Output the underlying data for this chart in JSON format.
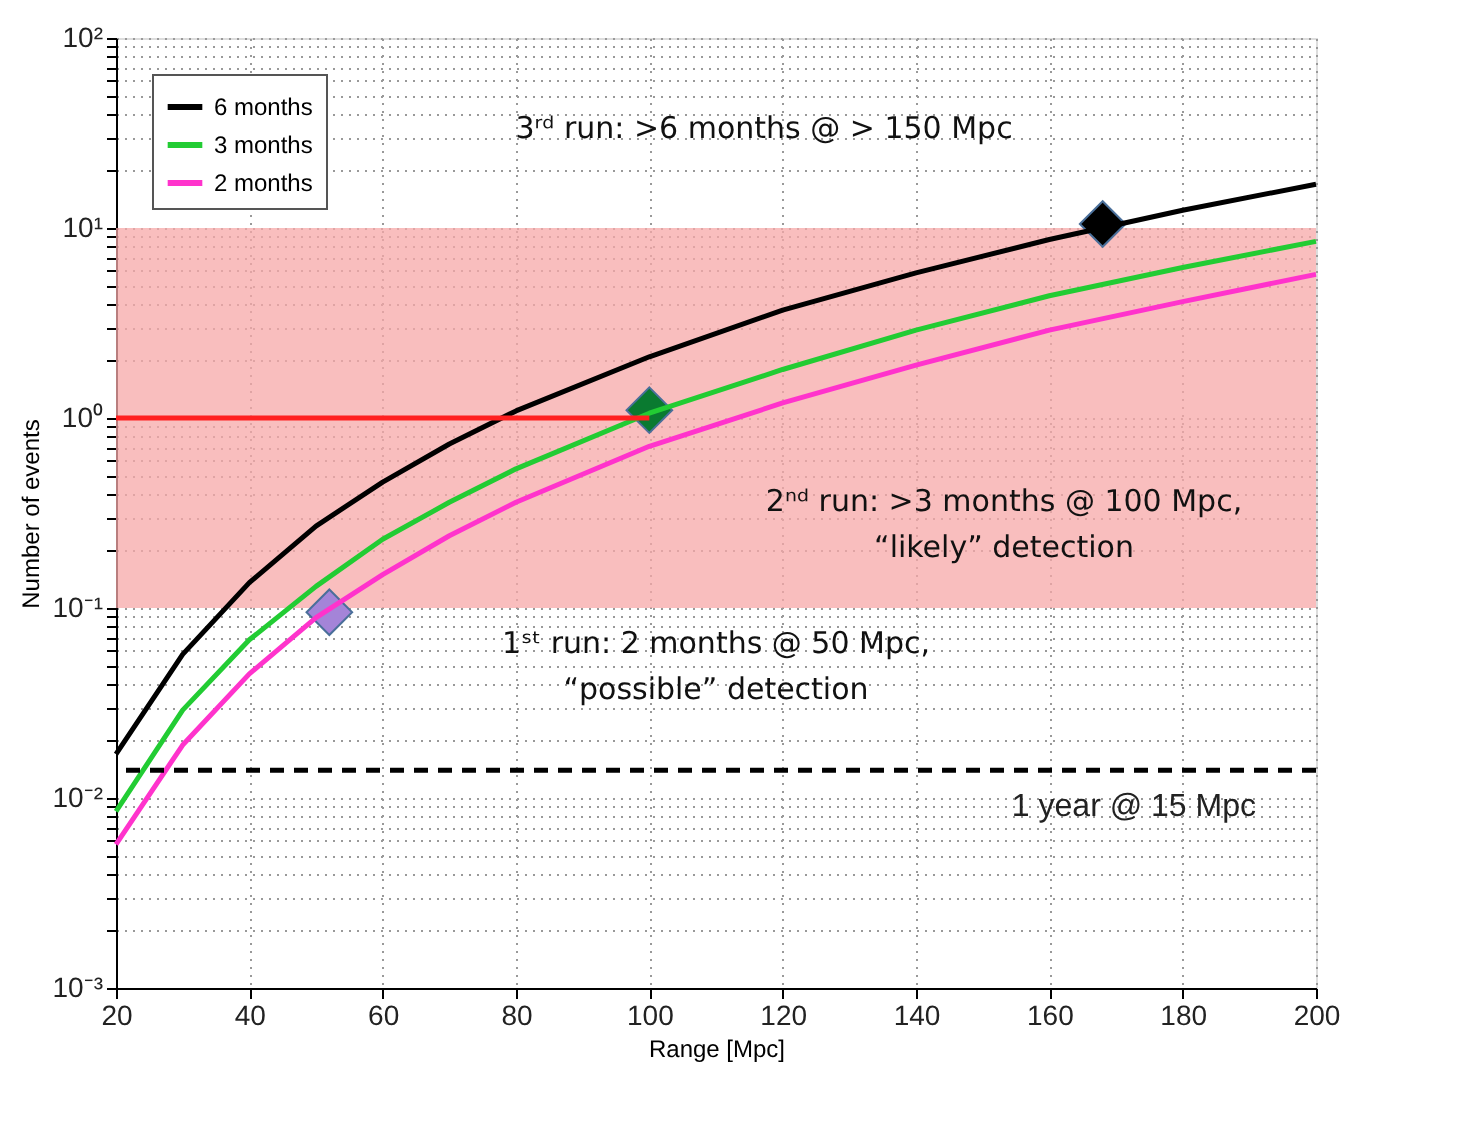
{
  "chart_data": {
    "type": "line",
    "xlabel": "Range [Mpc]",
    "ylabel": "Number of events",
    "log": "y",
    "grid": true,
    "line_style": "solid",
    "marker": "none",
    "legend": "top left",
    "xlim": [
      20,
      200
    ],
    "xticks": [
      20,
      40,
      60,
      80,
      100,
      120,
      140,
      160,
      180,
      200
    ],
    "ylim": [
      0.001,
      100
    ],
    "yticks": [
      {
        "value": 0.001,
        "label": "10⁻³"
      },
      {
        "value": 0.002,
        "label": null
      },
      {
        "value": 0.003,
        "label": null
      },
      {
        "value": 0.004,
        "label": null
      },
      {
        "value": 0.005,
        "label": null
      },
      {
        "value": 0.006,
        "label": null
      },
      {
        "value": 0.007,
        "label": null
      },
      {
        "value": 0.008,
        "label": null
      },
      {
        "value": 0.009,
        "label": null
      },
      {
        "value": 0.01,
        "label": "10⁻²"
      },
      {
        "value": 0.02,
        "label": null
      },
      {
        "value": 0.03,
        "label": null
      },
      {
        "value": 0.04,
        "label": null
      },
      {
        "value": 0.05,
        "label": null
      },
      {
        "value": 0.06,
        "label": null
      },
      {
        "value": 0.07,
        "label": null
      },
      {
        "value": 0.08,
        "label": null
      },
      {
        "value": 0.09,
        "label": null
      },
      {
        "value": 0.1,
        "label": "10⁻¹"
      },
      {
        "value": 0.2,
        "label": null
      },
      {
        "value": 0.3,
        "label": null
      },
      {
        "value": 0.4,
        "label": null
      },
      {
        "value": 0.5,
        "label": null
      },
      {
        "value": 0.6,
        "label": null
      },
      {
        "value": 0.7,
        "label": null
      },
      {
        "value": 0.8,
        "label": null
      },
      {
        "value": 0.9,
        "label": null
      },
      {
        "value": 1,
        "label": "10⁰"
      },
      {
        "value": 2,
        "label": null
      },
      {
        "value": 3,
        "label": null
      },
      {
        "value": 4,
        "label": null
      },
      {
        "value": 5,
        "label": null
      },
      {
        "value": 6,
        "label": null
      },
      {
        "value": 7,
        "label": null
      },
      {
        "value": 8,
        "label": null
      },
      {
        "value": 9,
        "label": null
      },
      {
        "value": 10,
        "label": "10¹"
      },
      {
        "value": 20,
        "label": null
      },
      {
        "value": 30,
        "label": null
      },
      {
        "value": 40,
        "label": null
      },
      {
        "value": 50,
        "label": null
      },
      {
        "value": 60,
        "label": null
      },
      {
        "value": 70,
        "label": null
      },
      {
        "value": 80,
        "label": null
      },
      {
        "value": 90,
        "label": null
      },
      {
        "value": 100,
        "label": "10²"
      }
    ],
    "x": [
      20,
      30,
      40,
      50,
      60,
      70,
      80,
      100,
      120,
      140,
      160,
      180,
      200
    ],
    "series": [
      {
        "name": "6 months",
        "color": "#000000",
        "values": [
          0.017,
          0.057,
          0.136,
          0.27,
          0.46,
          0.73,
          1.09,
          2.1,
          3.7,
          5.8,
          8.7,
          12.4,
          17
        ]
      },
      {
        "name": "3 months",
        "color": "#22cc33",
        "values": [
          0.0085,
          0.029,
          0.068,
          0.13,
          0.23,
          0.36,
          0.54,
          1.06,
          1.8,
          2.9,
          4.4,
          6.2,
          8.5
        ]
      },
      {
        "name": "2 months",
        "color": "#ff33cc",
        "values": [
          0.0057,
          0.019,
          0.045,
          0.089,
          0.15,
          0.24,
          0.36,
          0.71,
          1.2,
          1.9,
          2.9,
          4.1,
          5.7
        ]
      },
      {
        "type": "line",
        "color": "#ff2020",
        "x": [
          20,
          100
        ],
        "values": [
          1,
          1
        ]
      },
      {
        "type": "scatter",
        "marker": "diamond",
        "x": [
          52,
          100,
          168
        ],
        "values": [
          0.095,
          1.1,
          10.5
        ],
        "colors": [
          "#a484d8",
          "#0a7a30",
          "#000000"
        ]
      }
    ],
    "bands": [
      {
        "axis": "y",
        "from": 0.1,
        "to": 10,
        "color": "#f7a8a8"
      }
    ],
    "ref_lines": [
      {
        "axis": "y",
        "value": 0.014,
        "label": "1 year @ 15 Mpc",
        "color": "#000000",
        "line_style": "dashed"
      }
    ],
    "annotations": [
      "3ʳᵈ run: >6 months @ > 150 Mpc",
      "2ⁿᵈ run: >3 months @ 100 Mpc,\n“likely” detection",
      "1ˢᵗ run: 2 months @ 50 Mpc,\n“possible” detection"
    ]
  }
}
